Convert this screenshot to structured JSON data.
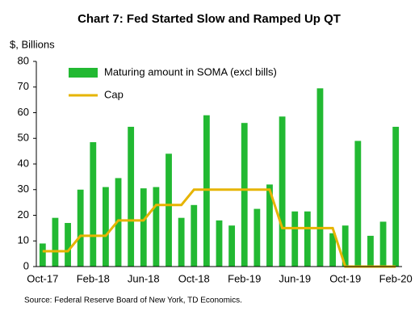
{
  "chart_data": {
    "type": "bar-line",
    "title": "Chart 7: Fed Started Slow and Ramped Up QT",
    "y_label": "$, Billions",
    "source": "Source: Federal Reserve Board of New York, TD Economics.",
    "categories": [
      "Oct-17",
      null,
      null,
      null,
      "Feb-18",
      null,
      null,
      null,
      "Jun-18",
      null,
      null,
      null,
      "Oct-18",
      null,
      null,
      null,
      "Feb-19",
      null,
      null,
      null,
      "Jun-19",
      null,
      null,
      null,
      "Oct-19",
      null,
      null,
      null,
      "Feb-20"
    ],
    "series": [
      {
        "name": "Maturing amount in SOMA (excl bills)",
        "type": "bar",
        "color": "#22b932",
        "values": [
          9,
          19,
          17,
          30,
          48.5,
          31,
          34.5,
          54.5,
          30.5,
          31,
          44,
          19,
          24,
          59,
          18,
          16,
          56,
          22.5,
          32,
          58.5,
          21.5,
          21.5,
          69.5,
          13,
          16,
          49,
          12,
          17.5,
          54.5
        ]
      },
      {
        "name": "Cap",
        "type": "line",
        "color": "#e6b400",
        "values": [
          6,
          6,
          6,
          12,
          12,
          12,
          18,
          18,
          18,
          24,
          24,
          24,
          30,
          30,
          30,
          30,
          30,
          30,
          30,
          15,
          15,
          15,
          15,
          15,
          0,
          0,
          0,
          0,
          0
        ]
      }
    ],
    "ylim": [
      0,
      80
    ],
    "yticks": [
      0,
      10,
      20,
      30,
      40,
      50,
      60,
      70,
      80
    ],
    "grid": false,
    "legend": "upper left"
  }
}
